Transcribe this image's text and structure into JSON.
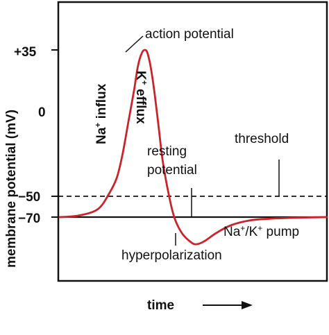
{
  "chart_data": {
    "type": "line",
    "title": "",
    "xlabel": "time",
    "ylabel": "membrane potential (mV)",
    "y_ticks": [
      {
        "label": "+35",
        "value": 35
      },
      {
        "label": "0",
        "value": 0
      },
      {
        "label": "−50",
        "value": -50
      },
      {
        "label": "−70",
        "value": -70
      }
    ],
    "grid": false,
    "series": [
      {
        "color": "#cc2229",
        "points": [
          [
            0,
            -70
          ],
          [
            1,
            -69
          ],
          [
            2,
            -65
          ],
          [
            2.6,
            -55
          ],
          [
            3.0,
            -45
          ],
          [
            3.3,
            -30
          ],
          [
            3.6,
            -10
          ],
          [
            3.9,
            10
          ],
          [
            4.1,
            25
          ],
          [
            4.3,
            33
          ],
          [
            4.45,
            35
          ],
          [
            4.6,
            33
          ],
          [
            4.8,
            22
          ],
          [
            5.0,
            5
          ],
          [
            5.2,
            -15
          ],
          [
            5.4,
            -35
          ],
          [
            5.7,
            -55
          ],
          [
            6.0,
            -70
          ],
          [
            6.4,
            -80
          ],
          [
            6.9,
            -86
          ],
          [
            7.2,
            -87
          ],
          [
            7.6,
            -85
          ],
          [
            8.2,
            -80
          ],
          [
            9.0,
            -75
          ],
          [
            10.0,
            -72
          ],
          [
            11.0,
            -71
          ],
          [
            12.0,
            -70.5
          ],
          [
            13.0,
            -70.2
          ],
          [
            14.0,
            -70
          ]
        ]
      }
    ],
    "reference_lines": [
      {
        "label": "threshold",
        "value": -50,
        "style": "dashed"
      },
      {
        "label": "resting potential",
        "value": -70,
        "style": "solid"
      }
    ],
    "annotations": {
      "action_potential": "action potential",
      "na_prefix": "Na",
      "na_sup": "+",
      "na_suffix": " influx",
      "k_prefix": "K",
      "k_sup": "+",
      "k_suffix": " efflux",
      "resting_line1": "resting",
      "resting_line2": "potential",
      "threshold": "threshold",
      "pump_a": "Na",
      "pump_sup1": "+",
      "pump_b": "/K",
      "pump_sup2": "+",
      "pump_c": " pump",
      "hyperpolarization": "hyperpolarization"
    },
    "time_arrow": "right-arrow"
  }
}
